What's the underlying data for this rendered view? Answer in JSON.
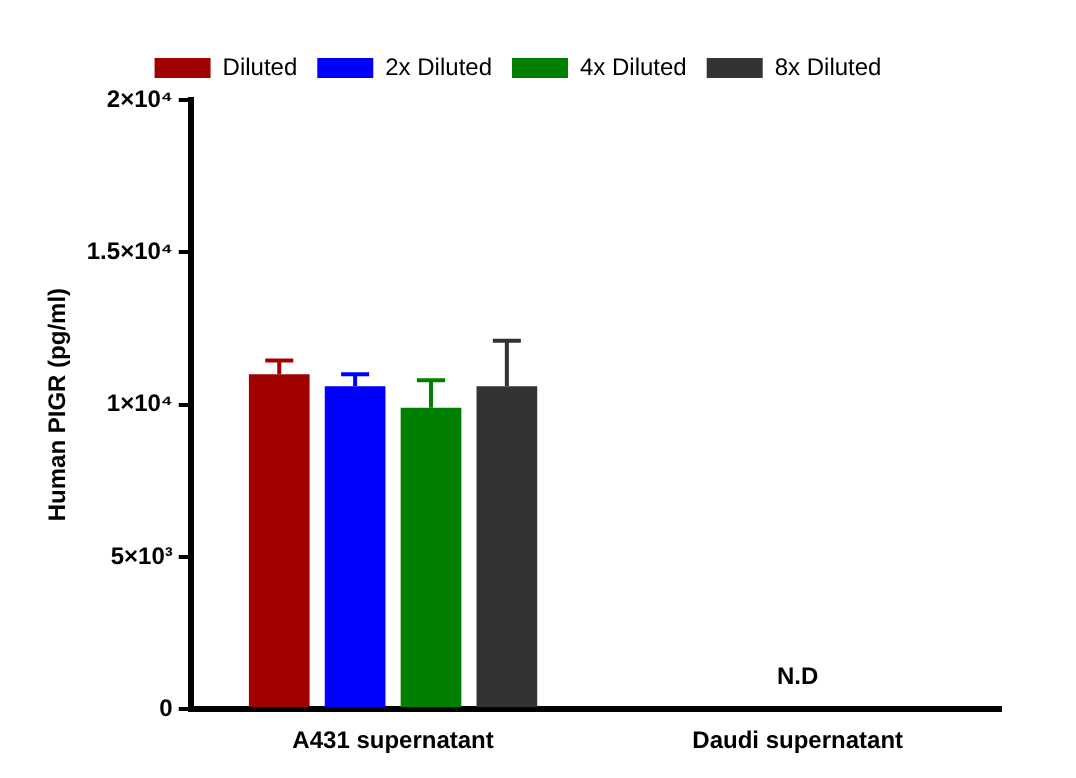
{
  "chart_data": {
    "type": "bar",
    "ylabel": "Human PIGR (pg/ml)",
    "categories": [
      "A431 supernatant",
      "Daudi supernatant"
    ],
    "series": [
      {
        "name": "Diluted",
        "color": "#a00000",
        "values": [
          11000,
          null
        ],
        "errors": [
          [
            11000,
            11450
          ],
          null
        ]
      },
      {
        "name": "2x Diluted",
        "color": "#0000ff",
        "values": [
          10600,
          null
        ],
        "errors": [
          [
            10600,
            11000
          ],
          null
        ]
      },
      {
        "name": "4x Diluted",
        "color": "#008000",
        "values": [
          9900,
          null
        ],
        "errors": [
          [
            9900,
            10800
          ],
          null
        ]
      },
      {
        "name": "8x Diluted",
        "color": "#333333",
        "values": [
          10600,
          null
        ],
        "errors": [
          [
            10600,
            12100
          ],
          null
        ]
      }
    ],
    "ylim": [
      0,
      20000
    ],
    "yticks": [
      0,
      {
        "value": 5000,
        "label": "5×10³"
      },
      {
        "value": 10000,
        "label": "1×10⁴"
      },
      {
        "value": 15000,
        "label": "1.5×10⁴"
      },
      {
        "value": 20000,
        "label": "2×10⁴"
      }
    ],
    "annotations": [
      "N.D"
    ],
    "grid": false,
    "legend": "top"
  }
}
